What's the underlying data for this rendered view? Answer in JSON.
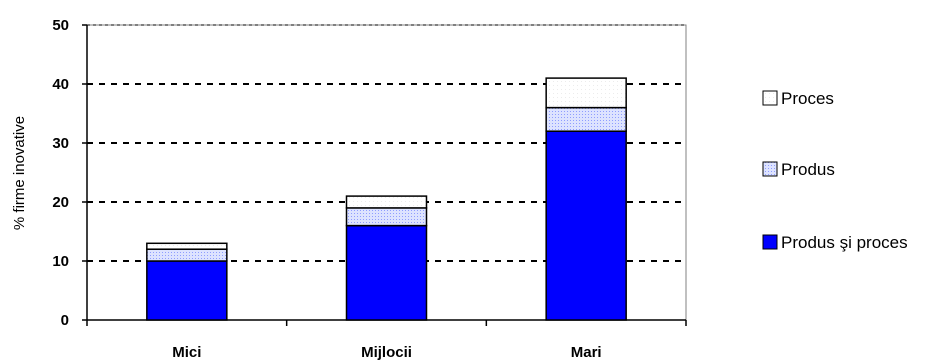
{
  "chart_data": {
    "type": "bar",
    "stacked": true,
    "categories": [
      "Mici",
      "Mijlocii",
      "Mari"
    ],
    "series": [
      {
        "name": "Produs şi proces",
        "values": [
          10,
          16,
          32
        ],
        "color": "#0000ff",
        "pattern": "solid"
      },
      {
        "name": "Produs",
        "values": [
          2,
          3,
          4
        ],
        "color": "#c7cfff",
        "pattern": "dotted-light-blue"
      },
      {
        "name": "Proces",
        "values": [
          1,
          2,
          5
        ],
        "color": "#ffffff",
        "pattern": "white"
      }
    ],
    "legend_order": [
      "Proces",
      "Produs",
      "Produs şi proces"
    ],
    "title": "",
    "xlabel": "",
    "ylabel": "% firme inovative",
    "ylim": [
      0,
      50
    ],
    "yticks": [
      0,
      10,
      20,
      30,
      40,
      50
    ],
    "ytick_labels": [
      "0",
      "10",
      "20",
      "30",
      "40",
      "50"
    ],
    "grid": "horizontal dashed",
    "legend_position": "right"
  }
}
